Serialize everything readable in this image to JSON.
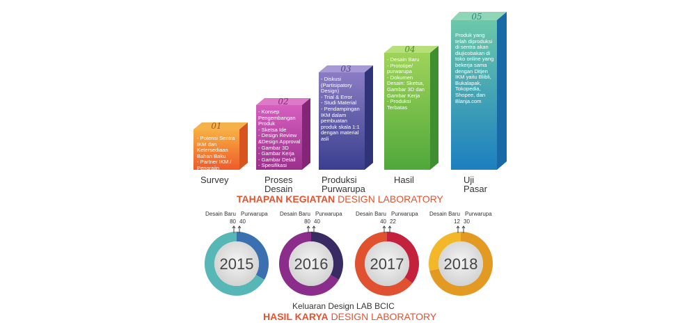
{
  "stages": [
    {
      "number": "01",
      "label_lines": [
        "Survey"
      ],
      "color": "#f07c32",
      "items": [
        "- Potensi Sentra IKM dan Ketersediaan Bahan Baku",
        "- Partner IKM / Pengrajin"
      ]
    },
    {
      "number": "02",
      "label_lines": [
        "Proses",
        "Desain"
      ],
      "color": "#c23f9c",
      "items": [
        "- Konsep Pengembangan Produk",
        "- Sketsa Ide",
        "- Design Review &Design Approval",
        "- Gambar 3D",
        "- Gambar Kerja",
        "- Gambar Detail",
        "- Spesifikasi Material"
      ]
    },
    {
      "number": "03",
      "label_lines": [
        "Produksi",
        "Purwarupa"
      ],
      "color": "#5b55a8",
      "items": [
        "- Diskusi (Partisipatory Design)",
        "- Trial & Error",
        "- Studi Material",
        "- Pendampingan IKM dalam pembuatan produk skala 1:1 dengan material asli"
      ]
    },
    {
      "number": "04",
      "label_lines": [
        "Hasil"
      ],
      "color": "#7dc242",
      "items": [
        "- Desain Baru",
        "- Prototipe/ purwarupa",
        "- Dokumen Desain: Sketsa, Gambar 3D dan Gambar Kerja",
        "- Produksi Terbatas"
      ]
    },
    {
      "number": "05",
      "label_lines": [
        "Uji",
        "Pasar"
      ],
      "color": "#27a3c8",
      "items": [
        "Produk yang telah diproduksi di sentra akan diujicobakan di toko online yang bekerja sama dengan Ditjen IKM yaitu Blibli, Bukalapak, Tokopedia, Shopee, dan Blanja.com"
      ]
    }
  ],
  "title_top": {
    "bold": "TAHAPAN KEGIATAN",
    "regular": " DESIGN LABORATORY"
  },
  "legend": {
    "left": "Desain Baru",
    "right": "Purwarupa"
  },
  "years": [
    {
      "year": "2015",
      "desain_baru": 80,
      "purwarupa": 40,
      "color_a": "#57b7b7",
      "color_b": "#3a6fb0"
    },
    {
      "year": "2016",
      "desain_baru": 80,
      "purwarupa": 40,
      "color_a": "#8a2d8b",
      "color_b": "#3a2a63"
    },
    {
      "year": "2017",
      "desain_baru": 40,
      "purwarupa": 22,
      "color_a": "#e0522f",
      "color_b": "#c4213c"
    },
    {
      "year": "2018",
      "desain_baru": 12,
      "purwarupa": 30,
      "color_a": "#f2b82a",
      "color_b": "#e39a23"
    }
  ],
  "subtitle": "Keluaran Design LAB BCIC",
  "title_bottom": {
    "bold": "HASIL KARYA",
    "regular": " DESIGN LABORATORY"
  },
  "colors": {
    "title_bold": "#e8512e",
    "title_regular": "#e8512e",
    "text_dark": "#333333"
  }
}
